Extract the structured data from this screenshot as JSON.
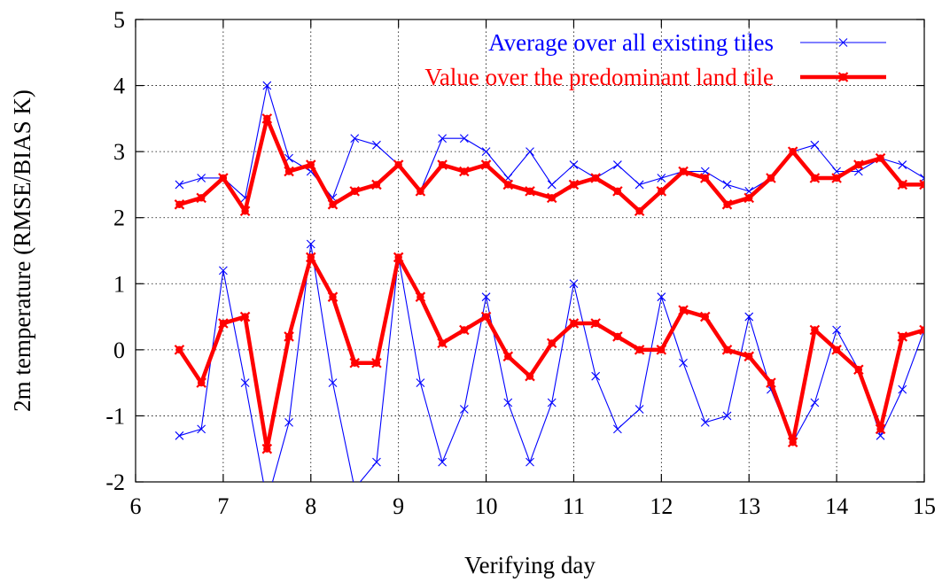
{
  "chart_data": {
    "type": "line",
    "xlabel": "Verifying day",
    "ylabel": "2m temperature (RMSE/BIAS K)",
    "xlim": [
      6,
      15
    ],
    "ylim": [
      -2,
      5
    ],
    "xticks": [
      "6",
      "7",
      "8",
      "9",
      "10",
      "11",
      "12",
      "13",
      "14",
      "15"
    ],
    "yticks": [
      "-2",
      "-1",
      "0",
      "1",
      "2",
      "3",
      "4",
      "5"
    ],
    "grid": true,
    "legend_position": "top-right",
    "series": [
      {
        "name": "Average over all existing tiles",
        "color": "#0000ff",
        "style": "thin line with x markers",
        "groups": [
          {
            "role": "RMSE",
            "x": [
              6.5,
              6.75,
              7,
              7.25,
              7.5,
              7.75,
              8,
              8.25,
              8.5,
              8.75,
              9,
              9.25,
              9.5,
              9.75,
              10,
              10.25,
              10.5,
              10.75,
              11,
              11.25,
              11.5,
              11.75,
              12,
              12.25,
              12.5,
              12.75,
              13,
              13.25,
              13.5,
              13.75,
              14,
              14.25,
              14.5,
              14.75,
              15
            ],
            "y": [
              2.5,
              2.6,
              2.6,
              2.3,
              4.0,
              2.9,
              2.7,
              2.3,
              3.2,
              3.1,
              2.8,
              2.4,
              3.2,
              3.2,
              3.0,
              2.6,
              3.0,
              2.5,
              2.8,
              2.6,
              2.8,
              2.5,
              2.6,
              2.7,
              2.7,
              2.5,
              2.4,
              2.6,
              3.0,
              3.1,
              2.7,
              2.7,
              2.9,
              2.8,
              2.6
            ]
          },
          {
            "role": "BIAS",
            "x": [
              6.5,
              6.75,
              7,
              7.25,
              7.5,
              7.75,
              8,
              8.25,
              8.5,
              8.75,
              9,
              9.25,
              9.5,
              9.75,
              10,
              10.25,
              10.5,
              10.75,
              11,
              11.25,
              11.5,
              11.75,
              12,
              12.25,
              12.5,
              12.75,
              13,
              13.25,
              13.5,
              13.75,
              14,
              14.25,
              14.5,
              14.75,
              15
            ],
            "y": [
              -1.3,
              -1.2,
              1.2,
              -0.5,
              -2.3,
              -1.1,
              1.6,
              -0.5,
              -2.1,
              -1.7,
              1.4,
              -0.5,
              -1.7,
              -0.9,
              0.8,
              -0.8,
              -1.7,
              -0.8,
              1.0,
              -0.4,
              -1.2,
              -0.9,
              0.8,
              -0.2,
              -1.1,
              -1.0,
              0.5,
              -0.6,
              -1.4,
              -0.8,
              0.3,
              -0.3,
              -1.3,
              -0.6,
              0.3
            ]
          }
        ]
      },
      {
        "name": "Value over the predominant land tile",
        "color": "#ff0000",
        "style": "thick line with filled markers",
        "groups": [
          {
            "role": "RMSE",
            "x": [
              6.5,
              6.75,
              7,
              7.25,
              7.5,
              7.75,
              8,
              8.25,
              8.5,
              8.75,
              9,
              9.25,
              9.5,
              9.75,
              10,
              10.25,
              10.5,
              10.75,
              11,
              11.25,
              11.5,
              11.75,
              12,
              12.25,
              12.5,
              12.75,
              13,
              13.25,
              13.5,
              13.75,
              14,
              14.25,
              14.5,
              14.75,
              15
            ],
            "y": [
              2.2,
              2.3,
              2.6,
              2.1,
              3.5,
              2.7,
              2.8,
              2.2,
              2.4,
              2.5,
              2.8,
              2.4,
              2.8,
              2.7,
              2.8,
              2.5,
              2.4,
              2.3,
              2.5,
              2.6,
              2.4,
              2.1,
              2.4,
              2.7,
              2.6,
              2.2,
              2.3,
              2.6,
              3.0,
              2.6,
              2.6,
              2.8,
              2.9,
              2.5,
              2.5
            ]
          },
          {
            "role": "BIAS",
            "x": [
              6.5,
              6.75,
              7,
              7.25,
              7.5,
              7.75,
              8,
              8.25,
              8.5,
              8.75,
              9,
              9.25,
              9.5,
              9.75,
              10,
              10.25,
              10.5,
              10.75,
              11,
              11.25,
              11.5,
              11.75,
              12,
              12.25,
              12.5,
              12.75,
              13,
              13.25,
              13.5,
              13.75,
              14,
              14.25,
              14.5,
              14.75,
              15
            ],
            "y": [
              0.0,
              -0.5,
              0.4,
              0.5,
              -1.5,
              0.2,
              1.4,
              0.8,
              -0.2,
              -0.2,
              1.4,
              0.8,
              0.1,
              0.3,
              0.5,
              -0.1,
              -0.4,
              0.1,
              0.4,
              0.4,
              0.2,
              0.0,
              0.0,
              0.6,
              0.5,
              0.0,
              -0.1,
              -0.5,
              -1.4,
              0.3,
              0.0,
              -0.3,
              -1.2,
              0.2,
              0.3
            ]
          }
        ]
      }
    ]
  }
}
